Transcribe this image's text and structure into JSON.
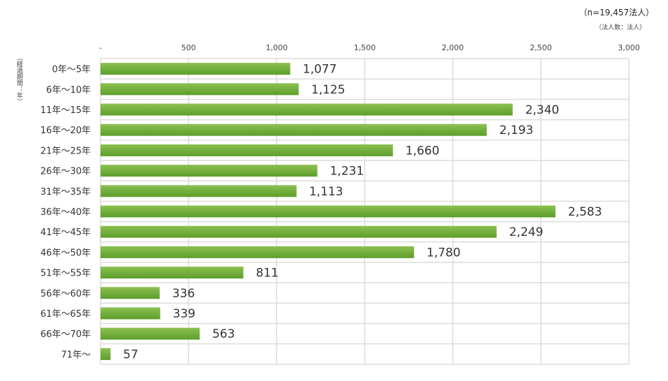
{
  "notes": {
    "n_count": "（n=19,457法人）",
    "unit": "（法人数：法人）",
    "y_axis_label": "（経過期間：年）"
  },
  "colors": {
    "bar_top": "#8cc152",
    "bar_bottom": "#5d9e2b",
    "grid": "#dcdcdc",
    "value_text": "#333333"
  },
  "chart_data": {
    "type": "bar",
    "orientation": "horizontal",
    "categories": [
      "0年～5年",
      "6年～10年",
      "11年～15年",
      "16年～20年",
      "21年～25年",
      "26年～30年",
      "31年～35年",
      "36年～40年",
      "41年～45年",
      "46年～50年",
      "51年～55年",
      "56年～60年",
      "61年～65年",
      "66年～70年",
      "71年～"
    ],
    "values": [
      1077,
      1125,
      2340,
      2193,
      1660,
      1231,
      1113,
      2583,
      2249,
      1780,
      811,
      336,
      339,
      563,
      57
    ],
    "value_labels": [
      "1,077",
      "1,125",
      "2,340",
      "2,193",
      "1,660",
      "1,231",
      "1,113",
      "2,583",
      "2,249",
      "1,780",
      "811",
      "336",
      "339",
      "563",
      "57"
    ],
    "x_ticks": [
      0,
      500,
      1000,
      1500,
      2000,
      2500,
      3000
    ],
    "x_tick_labels": [
      "-",
      "500",
      "1,000",
      "1,500",
      "2,000",
      "2,500",
      "3,000"
    ],
    "xlim": [
      0,
      3000
    ],
    "x_axis_position": "top",
    "grid": true,
    "legend": "none"
  }
}
